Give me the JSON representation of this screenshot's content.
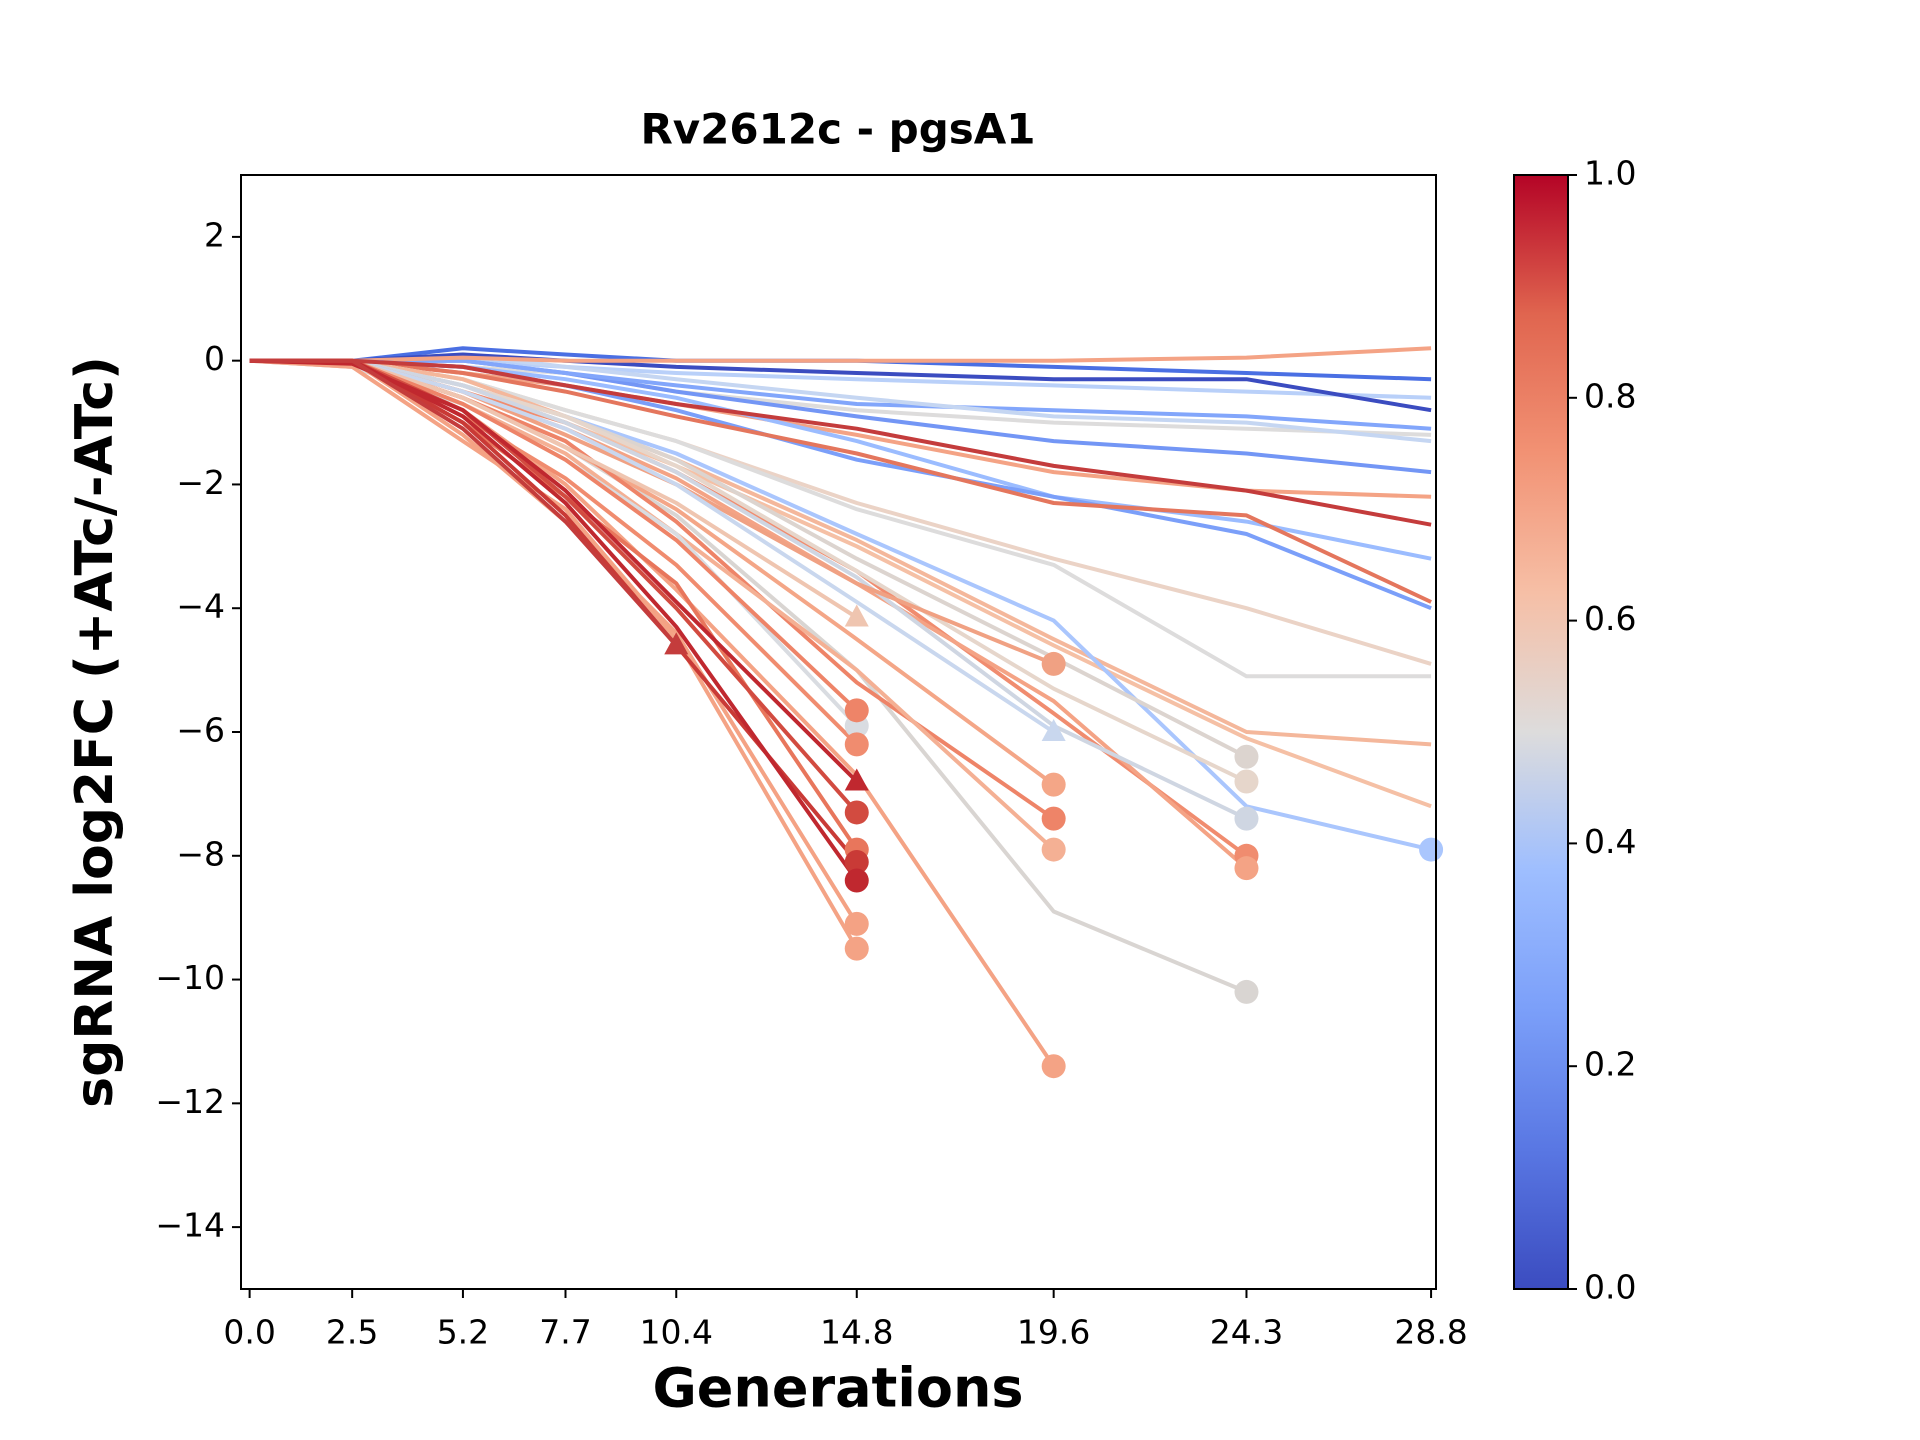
{
  "chart_data": {
    "type": "line",
    "title": "Rv2612c - pgsA1",
    "xlabel": "Generations",
    "ylabel": "sgRNA log2FC (+ATc/-ATc)",
    "x": [
      0,
      2.5,
      5.2,
      7.7,
      10.4,
      14.8,
      19.6,
      24.3,
      28.8
    ],
    "xlim": [
      -0.21,
      28.92
    ],
    "xticks": [
      {
        "value": 0,
        "label": "0.0"
      },
      2.5,
      5.2,
      7.7,
      10.4,
      14.8,
      19.6,
      24.3,
      28.8
    ],
    "ylim": [
      -15,
      3
    ],
    "yticks": [
      {
        "value": -14,
        "label": "−14"
      },
      {
        "value": -12,
        "label": "−12"
      },
      {
        "value": -10,
        "label": "−10"
      },
      {
        "value": -8,
        "label": "−8"
      },
      {
        "value": -6,
        "label": "−6"
      },
      {
        "value": -4,
        "label": "−4"
      },
      {
        "value": -2,
        "label": "−2"
      },
      0,
      2
    ],
    "colorbar": {
      "lim": [
        0,
        1
      ],
      "ticks": [
        {
          "value": 0,
          "label": "0.0"
        },
        {
          "value": 0.2,
          "label": "0.2"
        },
        {
          "value": 0.4,
          "label": "0.4"
        },
        {
          "value": 0.6,
          "label": "0.6"
        },
        {
          "value": 0.8,
          "label": "0.8"
        },
        {
          "value": 1,
          "label": "1.0"
        }
      ]
    },
    "series": [
      {
        "color": "#b9d0f9",
        "values": [
          0,
          0,
          0,
          -0.1,
          -0.2,
          -0.3,
          -0.4,
          -0.5,
          -0.6
        ]
      },
      {
        "color": "#dddcdc",
        "values": [
          0,
          0,
          -0.1,
          -0.2,
          -0.5,
          -0.8,
          -1.0,
          -1.1,
          -1.2
        ]
      },
      {
        "color": "#7396f5",
        "values": [
          0,
          0,
          0,
          -0.2,
          -0.5,
          -0.9,
          -1.3,
          -1.5,
          -1.8
        ]
      },
      {
        "color": "#82a6fb",
        "values": [
          0,
          0,
          0,
          -0.2,
          -0.4,
          -0.7,
          -0.8,
          -0.9,
          -1.1
        ]
      },
      {
        "color": "#c5d6f2",
        "values": [
          0,
          0,
          0.1,
          -0.1,
          -0.3,
          -0.6,
          -0.9,
          -1.0,
          -1.3
        ]
      },
      {
        "color": "#4a6fe3",
        "values": [
          0,
          0,
          0.2,
          0.1,
          0,
          0,
          -0.1,
          -0.2,
          -0.3
        ]
      },
      {
        "color": "#3b4cc0",
        "values": [
          0,
          0,
          0.1,
          0,
          -0.1,
          -0.2,
          -0.3,
          -0.3,
          -0.8
        ]
      },
      {
        "color": "#f4a385",
        "values": [
          0,
          0,
          0.05,
          0,
          0,
          0,
          0,
          0.05,
          0.2
        ]
      },
      {
        "color": "#f4a385",
        "values": [
          0,
          0,
          -0.2,
          -0.4,
          -0.7,
          -1.2,
          -1.8,
          -2.1,
          -2.2
        ]
      },
      {
        "color": "#9bbcff",
        "values": [
          0,
          0,
          -0.1,
          -0.3,
          -0.6,
          -1.3,
          -2.2,
          -2.6,
          -3.2
        ]
      },
      {
        "color": "#7b9ff9",
        "values": [
          0,
          0,
          -0.1,
          -0.4,
          -0.8,
          -1.6,
          -2.2,
          -2.8,
          -4.0
        ]
      },
      {
        "color": "#e4765d",
        "values": [
          0,
          0,
          -0.2,
          -0.5,
          -0.9,
          -1.5,
          -2.3,
          -2.5,
          -3.9
        ]
      },
      {
        "color": "#ebd3c6",
        "values": [
          0,
          0,
          -0.3,
          -0.8,
          -1.3,
          -2.3,
          -3.2,
          -4.0,
          -4.9
        ]
      },
      {
        "color": "#dddcdc",
        "values": [
          0,
          0,
          -0.3,
          -0.8,
          -1.3,
          -2.4,
          -3.3,
          -5.1,
          -5.1
        ]
      },
      {
        "color": "#f4b79b",
        "values": [
          0,
          0,
          -0.3,
          -0.9,
          -1.6,
          -2.9,
          -4.5,
          -6.0,
          -6.2
        ]
      },
      {
        "color": "#f5c0a5",
        "values": [
          0,
          0,
          -0.4,
          -1.0,
          -1.7,
          -3.0,
          -4.6,
          -6.1,
          -7.2
        ]
      },
      {
        "color": "#aac6fd",
        "marker": "o",
        "values": [
          0,
          0,
          -0.4,
          -0.9,
          -1.5,
          -2.8,
          -4.2,
          -7.2,
          -7.9
        ]
      },
      {
        "color": "#d9d5d2",
        "marker": "o",
        "values": [
          0,
          0,
          -0.6,
          -1.4,
          -2.5,
          -5.0,
          -8.9,
          -10.2,
          null
        ]
      },
      {
        "color": "#f08c6f",
        "marker": "o",
        "values": [
          0,
          0,
          -0.5,
          -1.0,
          -1.8,
          -3.4,
          -5.7,
          -8.0,
          null
        ]
      },
      {
        "color": "#f4a385",
        "marker": "o",
        "values": [
          0,
          0,
          -0.5,
          -1.1,
          -1.9,
          -3.6,
          -5.5,
          -8.2,
          null
        ]
      },
      {
        "color": "#dcd4cf",
        "marker": "o",
        "values": [
          0,
          0,
          -0.4,
          -0.9,
          -1.6,
          -3.2,
          -4.8,
          -6.4,
          null
        ]
      },
      {
        "color": "#e6d6cb",
        "marker": "o",
        "values": [
          0,
          0,
          -0.4,
          -0.9,
          -1.7,
          -3.4,
          -5.3,
          -6.8,
          null
        ]
      },
      {
        "color": "#cfd6e2",
        "marker": "o",
        "values": [
          0,
          0,
          -0.4,
          -1.0,
          -1.8,
          -3.5,
          -5.9,
          -7.4,
          null
        ]
      },
      {
        "color": "#f0a183",
        "marker": "o",
        "values": [
          0,
          0,
          -0.5,
          -1.2,
          -2.0,
          -3.6,
          -4.9,
          null,
          null
        ]
      },
      {
        "color": "#f4a687",
        "marker": "o",
        "values": [
          0,
          0,
          -0.6,
          -1.4,
          -2.4,
          -4.5,
          -6.85,
          null,
          null
        ]
      },
      {
        "color": "#ee8468",
        "marker": "o",
        "values": [
          0,
          0,
          -0.6,
          -1.3,
          -2.6,
          -5.2,
          -7.4,
          null,
          null
        ]
      },
      {
        "color": "#f4b094",
        "marker": "o",
        "values": [
          0,
          -0.1,
          -0.7,
          -1.5,
          -2.8,
          -5.0,
          -7.9,
          null,
          null
        ]
      },
      {
        "color": "#c9d7ee",
        "marker": "^",
        "values": [
          0,
          0,
          -0.5,
          -1.1,
          -2.0,
          -3.9,
          -6.0,
          null,
          null
        ]
      },
      {
        "color": "#f4a385",
        "marker": "o",
        "values": [
          0,
          0,
          -0.8,
          -2.0,
          -3.7,
          -6.7,
          -11.4,
          null,
          null
        ]
      },
      {
        "color": "#efc5b0",
        "marker": "^",
        "values": [
          0,
          0,
          -0.6,
          -1.4,
          -2.3,
          -4.15,
          null,
          null,
          null
        ]
      },
      {
        "color": "#d9dce1",
        "marker": "o",
        "values": [
          0,
          -0.1,
          -0.7,
          -1.6,
          -2.8,
          -5.9,
          null,
          null,
          null
        ]
      },
      {
        "color": "#ee8468",
        "marker": "o",
        "values": [
          0,
          0,
          -0.7,
          -1.6,
          -2.9,
          -5.65,
          null,
          null,
          null
        ]
      },
      {
        "color": "#f08c6f",
        "marker": "o",
        "values": [
          0,
          0,
          -0.9,
          -1.9,
          -3.3,
          -6.2,
          null,
          null,
          null
        ]
      },
      {
        "color": "#f4a385",
        "marker": "o",
        "values": [
          0,
          -0.1,
          -1.3,
          -2.4,
          -4.5,
          -9.5,
          null,
          null,
          null
        ]
      },
      {
        "color": "#f4a284",
        "marker": "o",
        "values": [
          0,
          0,
          -1.2,
          -2.6,
          -4.4,
          -9.1,
          null,
          null,
          null
        ]
      },
      {
        "color": "#e8765c",
        "marker": "o",
        "values": [
          0,
          0,
          -1.0,
          -2.2,
          -3.6,
          -7.9,
          null,
          null,
          null
        ]
      },
      {
        "color": "#d24b40",
        "marker": "o",
        "values": [
          0,
          0,
          -0.8,
          -2.2,
          -4.0,
          -7.3,
          null,
          null,
          null
        ]
      },
      {
        "color": "#c93a36",
        "marker": "o",
        "values": [
          0,
          0,
          -1.0,
          -2.5,
          -4.6,
          -8.1,
          null,
          null,
          null
        ]
      },
      {
        "color": "#c0282f",
        "marker": "o",
        "values": [
          0,
          0,
          -0.9,
          -2.3,
          -4.3,
          -8.4,
          null,
          null,
          null
        ]
      },
      {
        "color": "#c0282f",
        "marker": "^",
        "values": [
          0,
          -0.05,
          -0.8,
          -2.1,
          -3.9,
          -6.8,
          null,
          null,
          null
        ]
      },
      {
        "color": "#c43c3c",
        "marker": "^",
        "values": [
          0,
          0,
          -1.1,
          -2.6,
          -4.6,
          null,
          null,
          null,
          null
        ]
      },
      {
        "color": "#c43c3c",
        "values": [
          0,
          0,
          -0.1,
          -0.4,
          -0.7,
          -1.1,
          -1.7,
          -2.1,
          -2.65
        ]
      }
    ]
  }
}
